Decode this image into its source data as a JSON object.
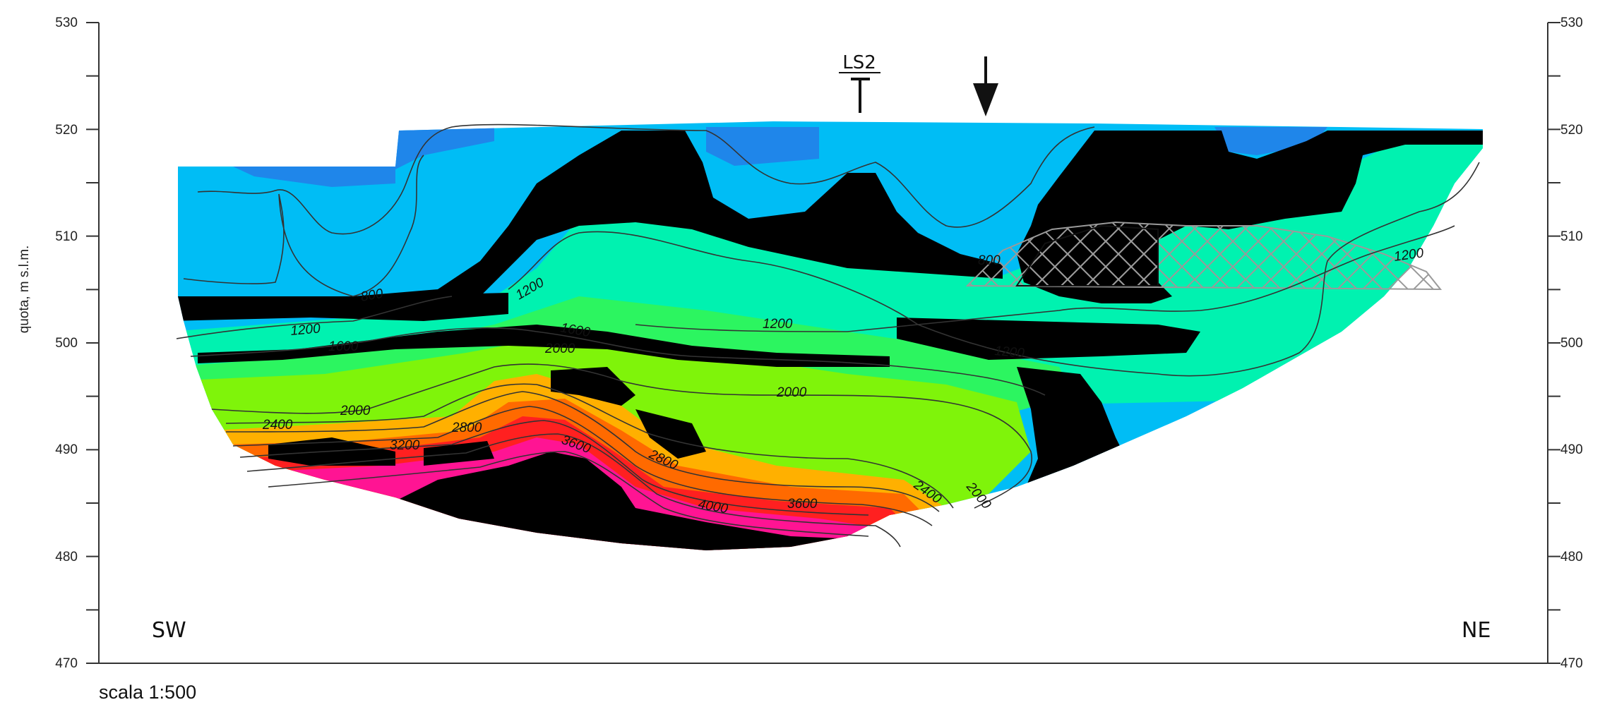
{
  "y_axis": {
    "title": "quota, m s.l.m.",
    "ticks": [
      "530",
      "520",
      "510",
      "500",
      "490",
      "480",
      "470"
    ]
  },
  "orientation": {
    "left": "SW",
    "right": "NE"
  },
  "borehole": {
    "label": "LS2"
  },
  "scale_text": "scala 1:500",
  "contour_labels": [
    "800",
    "800",
    "1200",
    "1200",
    "1200",
    "1200",
    "1200",
    "1600",
    "1600",
    "2000",
    "2000",
    "2000",
    "2000",
    "2400",
    "2400",
    "2800",
    "2800",
    "3200",
    "3600",
    "3600",
    "4000"
  ],
  "colors": {
    "band_800": "#00bdf5",
    "band_800_dark": "#1f86ea",
    "band_1200": "#00f2b0",
    "band_1600": "#2cf560",
    "band_2000": "#7ff40a",
    "band_2400": "#ffb000",
    "band_2800": "#ff6a00",
    "band_3200": "#ff2020",
    "band_3600": "#ff1493",
    "masked": "#000000",
    "contour": "#333333",
    "hatch": "#9a9a9a"
  }
}
